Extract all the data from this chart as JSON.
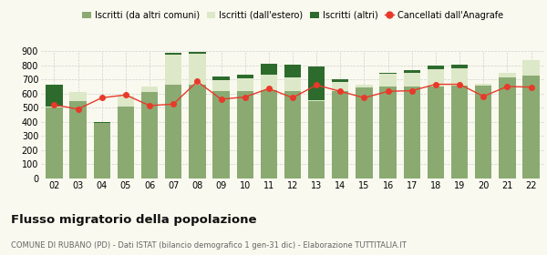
{
  "years": [
    "02",
    "03",
    "04",
    "05",
    "06",
    "07",
    "08",
    "09",
    "10",
    "11",
    "12",
    "13",
    "14",
    "15",
    "16",
    "17",
    "18",
    "19",
    "20",
    "21",
    "22"
  ],
  "iscritti_altri_comuni": [
    500,
    548,
    390,
    505,
    610,
    665,
    665,
    620,
    620,
    625,
    620,
    548,
    620,
    640,
    648,
    648,
    648,
    655,
    655,
    715,
    725
  ],
  "iscritti_estero": [
    10,
    65,
    0,
    80,
    40,
    210,
    215,
    75,
    85,
    105,
    95,
    5,
    60,
    20,
    90,
    95,
    125,
    125,
    15,
    30,
    110
  ],
  "iscritti_altri": [
    150,
    0,
    10,
    0,
    0,
    15,
    15,
    25,
    25,
    80,
    90,
    235,
    20,
    5,
    10,
    25,
    25,
    25,
    0,
    0,
    0
  ],
  "cancellati": [
    520,
    490,
    570,
    590,
    515,
    525,
    685,
    560,
    575,
    635,
    570,
    660,
    615,
    570,
    615,
    620,
    665,
    665,
    580,
    650,
    645
  ],
  "color_altri_comuni": "#8aaa72",
  "color_estero": "#dde8c8",
  "color_altri": "#2d6b2d",
  "color_cancellati": "#e8392a",
  "ylim": [
    0,
    900
  ],
  "yticks": [
    0,
    100,
    200,
    300,
    400,
    500,
    600,
    700,
    800,
    900
  ],
  "legend_labels": [
    "Iscritti (da altri comuni)",
    "Iscritti (dall'estero)",
    "Iscritti (altri)",
    "Cancellati dall'Anagrafe"
  ],
  "title": "Flusso migratorio della popolazione",
  "subtitle": "COMUNE DI RUBANO (PD) - Dati ISTAT (bilancio demografico 1 gen-31 dic) - Elaborazione TUTTITALIA.IT",
  "background_color": "#f9f9ef",
  "grid_color": "#d0d0d0"
}
